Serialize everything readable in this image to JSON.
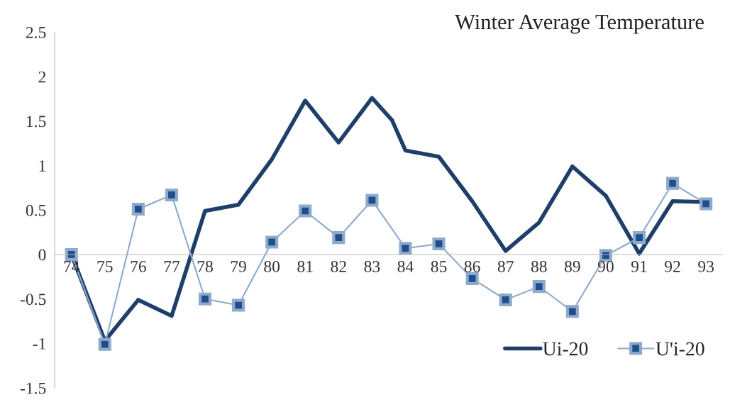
{
  "chart_data": {
    "type": "line",
    "title": "Winter Average Temperature",
    "xlim": [
      73.5,
      93.5
    ],
    "xticks": [
      74,
      75,
      76,
      77,
      78,
      79,
      80,
      81,
      82,
      83,
      84,
      85,
      86,
      87,
      88,
      89,
      90,
      91,
      92,
      93
    ],
    "ylim": [
      -1.5,
      2.5
    ],
    "yticks": [
      2.5,
      2,
      1.5,
      1,
      0.5,
      0,
      -0.5,
      -1,
      -1.5
    ],
    "grid": false,
    "legend": "bottom right",
    "series": [
      {
        "name": "Ui-20",
        "color": "#1f3f6b",
        "marker": "none",
        "line_style": "solid",
        "x": [
          74,
          75,
          76,
          77,
          78,
          79,
          80,
          81,
          82,
          83,
          83.6,
          84,
          85,
          86,
          87,
          88,
          89,
          90,
          91,
          92,
          93
        ],
        "values": [
          0,
          -0.97,
          -0.51,
          -0.69,
          0.49,
          0.56,
          1.07,
          1.73,
          1.26,
          1.76,
          1.51,
          1.17,
          1.1,
          0.6,
          0.04,
          0.36,
          0.99,
          0.66,
          0.01,
          0.6,
          0.59
        ]
      },
      {
        "name": "U'i-20",
        "color": "#8ea9cc",
        "marker": "square",
        "line_style": "solid",
        "x": [
          74,
          75,
          76,
          77,
          78,
          79,
          80,
          81,
          82,
          83,
          84,
          85,
          86,
          87,
          88,
          89,
          90,
          91,
          92,
          93
        ],
        "values": [
          0,
          -1.01,
          0.51,
          0.67,
          -0.5,
          -0.57,
          0.14,
          0.49,
          0.19,
          0.61,
          0.07,
          0.12,
          -0.27,
          -0.51,
          -0.36,
          -0.64,
          -0.01,
          0.19,
          0.8,
          0.57
        ]
      }
    ]
  }
}
